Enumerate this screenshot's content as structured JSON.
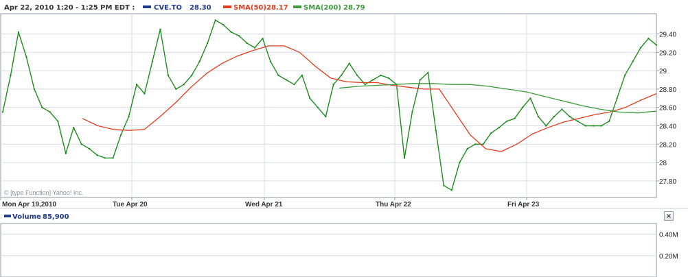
{
  "header": {
    "range": "Apr 22, 2010 1:20 - 1:25 PM EDT :",
    "ticker_label": "CVE.TO",
    "ticker_value": "28.30",
    "sma50_label": "SMA(50)",
    "sma50_value": "28.17",
    "sma200_label": "SMA(200)",
    "sma200_value": "28.79"
  },
  "copyright": "© [type Function] Yahoo! Inc.",
  "volume_panel": {
    "label": "Volume",
    "value": "85,900",
    "close_icon": "close-icon",
    "close_glyph": "×"
  },
  "colors": {
    "price": "#1e8a1e",
    "sma50": "#e03c1e",
    "sma200": "#3a9a3a",
    "ticker": "#203a8c",
    "volume": "#2b3f8f",
    "grid": "#d6dbe3",
    "axis": "#8d96a3"
  },
  "chart_data": {
    "type": "line",
    "title": "",
    "y_tick_labels": [
      "29.40",
      "29.20",
      "29",
      "28.80",
      "28.60",
      "28.40",
      "28.20",
      "28",
      "27.80"
    ],
    "ylim": [
      27.62,
      29.62
    ],
    "x_tick_labels": [
      "Mon Apr 19,2010",
      "Tue Apr 20",
      "Wed Apr 21",
      "Thu Apr 22",
      "Fri Apr 23"
    ],
    "grid": true,
    "legend": "top",
    "series": [
      {
        "name": "CVE.TO",
        "values": [
          28.55,
          28.95,
          29.42,
          29.15,
          28.8,
          28.6,
          28.55,
          28.45,
          28.1,
          28.38,
          28.2,
          28.15,
          28.08,
          28.05,
          28.05,
          28.3,
          28.5,
          28.85,
          28.75,
          29.1,
          29.45,
          28.95,
          28.8,
          28.85,
          28.95,
          29.1,
          29.3,
          29.55,
          29.5,
          29.42,
          29.38,
          29.3,
          29.25,
          29.35,
          29.1,
          28.95,
          28.9,
          28.85,
          28.95,
          28.7,
          28.6,
          28.5,
          28.85,
          28.95,
          29.08,
          28.95,
          28.85,
          28.9,
          28.95,
          28.92,
          28.85,
          28.05,
          28.55,
          28.9,
          28.98,
          28.35,
          27.75,
          27.7,
          28.0,
          28.15,
          28.2,
          28.2,
          28.32,
          28.38,
          28.45,
          28.48,
          28.6,
          28.7,
          28.5,
          28.4,
          28.5,
          28.58,
          28.5,
          28.45,
          28.4,
          28.4,
          28.4,
          28.45,
          28.7,
          28.95,
          29.1,
          29.25,
          29.35,
          29.28
        ]
      },
      {
        "name": "SMA(50)",
        "values": [
          28.48,
          28.4,
          28.36,
          28.35,
          28.36,
          28.5,
          28.65,
          28.82,
          28.97,
          29.08,
          29.16,
          29.22,
          29.27,
          29.27,
          29.2,
          29.05,
          28.92,
          28.88,
          28.87,
          28.87,
          28.84,
          28.82,
          28.8,
          28.8,
          28.55,
          28.3,
          28.15,
          28.12,
          28.2,
          28.31,
          28.38,
          28.44,
          28.48,
          28.52,
          28.55,
          28.6,
          28.68,
          28.75
        ]
      },
      {
        "name": "SMA(200)",
        "values": [
          28.81,
          28.83,
          28.84,
          28.85,
          28.86,
          28.86,
          28.85,
          28.85,
          28.83,
          28.8,
          28.77,
          28.72,
          28.67,
          28.62,
          28.58,
          28.55,
          28.54,
          28.56
        ]
      }
    ]
  },
  "volume_chart_data": {
    "type": "bar",
    "y_tick_labels": [
      "0.40M",
      "0.20M"
    ],
    "ylim": [
      0,
      0.5
    ]
  }
}
